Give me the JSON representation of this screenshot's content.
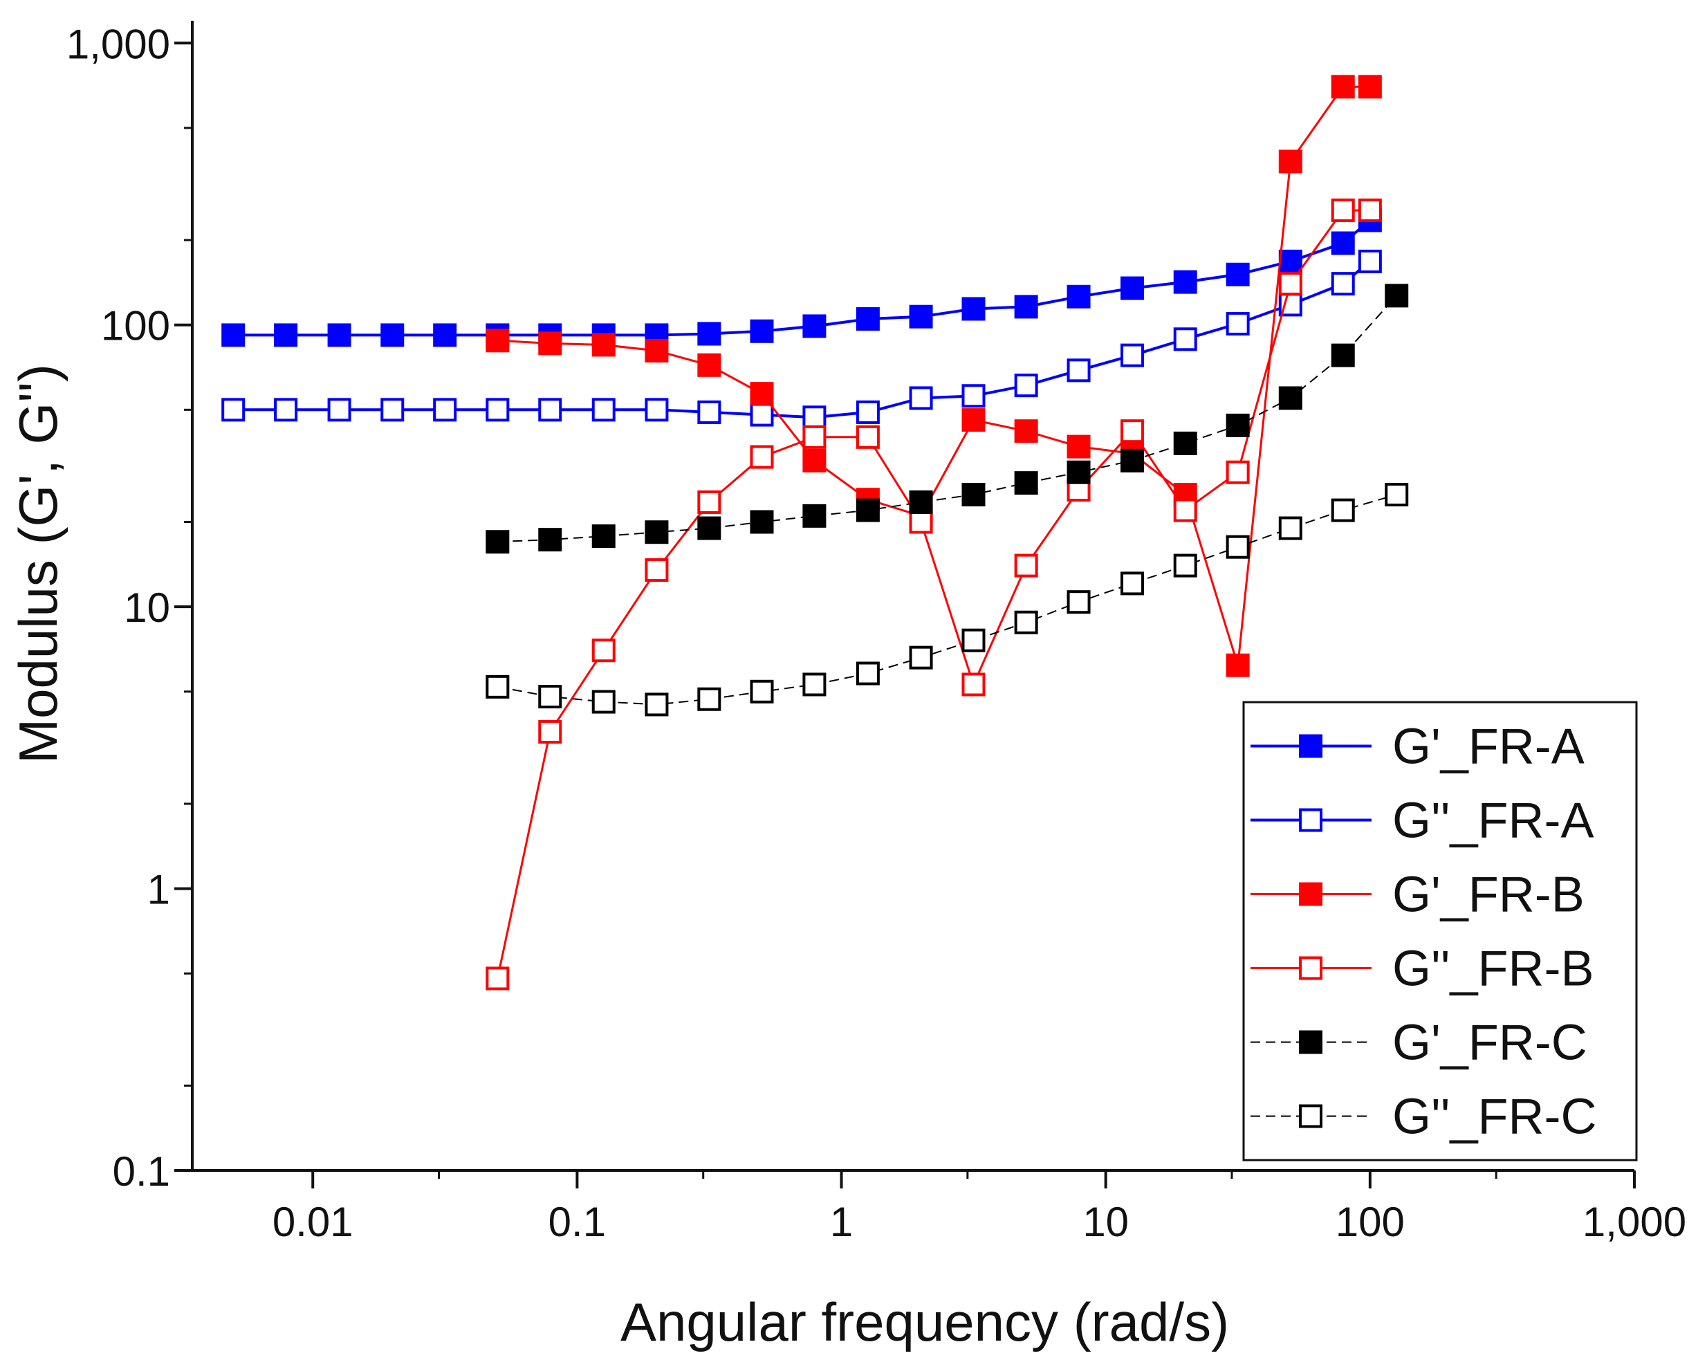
{
  "chart_data": {
    "type": "line",
    "title": "",
    "xlabel": "Angular frequency (rad/s)",
    "ylabel": "Modulus (G', G'')",
    "xscale": "log",
    "yscale": "log",
    "xlim": [
      0.0035,
      1000
    ],
    "ylim": [
      0.1,
      1200
    ],
    "x_ticks": [
      {
        "value": 0.01,
        "label": "0.01"
      },
      {
        "value": 0.1,
        "label": "0.1"
      },
      {
        "value": 1,
        "label": "1"
      },
      {
        "value": 10,
        "label": "10"
      },
      {
        "value": 100,
        "label": "100"
      },
      {
        "value": 1000,
        "label": "1,000"
      }
    ],
    "y_ticks": [
      {
        "value": 0.1,
        "label": "0.1"
      },
      {
        "value": 1,
        "label": "1"
      },
      {
        "value": 10,
        "label": "10"
      },
      {
        "value": 100,
        "label": "100"
      },
      {
        "value": 1000,
        "label": "1,000"
      }
    ],
    "grid": false,
    "legend_position": "bottom-right",
    "series": [
      {
        "name": "G'_FR-A",
        "color": "#0000ff",
        "filled": true,
        "line_width": 4,
        "dashed": false,
        "x": [
          0.005,
          0.0079,
          0.0126,
          0.02,
          0.0316,
          0.05,
          0.079,
          0.126,
          0.2,
          0.316,
          0.5,
          0.79,
          1.26,
          2,
          3.16,
          5,
          7.9,
          12.6,
          20,
          31.6,
          50,
          79,
          100
        ],
        "y": [
          92,
          92,
          92,
          92,
          92,
          92,
          92,
          92,
          92,
          93,
          95,
          99,
          105,
          107,
          114,
          116,
          126,
          135,
          142,
          151,
          168,
          195,
          235
        ]
      },
      {
        "name": "G''_FR-A",
        "color": "#0000ff",
        "filled": false,
        "line_width": 4,
        "dashed": false,
        "x": [
          0.005,
          0.0079,
          0.0126,
          0.02,
          0.0316,
          0.05,
          0.079,
          0.126,
          0.2,
          0.316,
          0.5,
          0.79,
          1.26,
          2,
          3.16,
          5,
          7.9,
          12.6,
          20,
          31.6,
          50,
          79,
          100
        ],
        "y": [
          50,
          50,
          50,
          50,
          50,
          50,
          50,
          50,
          50,
          49,
          48,
          47,
          49,
          55,
          56,
          61,
          69,
          78,
          89,
          101,
          118,
          140,
          168
        ]
      },
      {
        "name": "G'_FR-B",
        "color": "#ff0000",
        "filled": true,
        "line_width": 3,
        "dashed": false,
        "x": [
          0.05,
          0.079,
          0.126,
          0.2,
          0.316,
          0.5,
          0.79,
          1.26,
          2,
          3.16,
          5,
          7.9,
          12.6,
          20,
          31.6,
          50,
          79,
          100
        ],
        "y": [
          88,
          86,
          85,
          81,
          72,
          57,
          33,
          24,
          21,
          46,
          42,
          37,
          35,
          25,
          6.2,
          380,
          700,
          700
        ]
      },
      {
        "name": "G''_FR-B",
        "color": "#ff0000",
        "filled": false,
        "line_width": 3,
        "dashed": false,
        "x": [
          0.05,
          0.079,
          0.126,
          0.2,
          0.316,
          0.5,
          0.79,
          1.26,
          2,
          3.16,
          5,
          7.9,
          12.6,
          20,
          31.6,
          50,
          79,
          100
        ],
        "y": [
          0.48,
          3.6,
          7.0,
          13.5,
          23.5,
          34,
          40,
          40,
          20,
          5.3,
          14,
          26,
          42,
          22,
          30,
          140,
          255,
          255
        ]
      },
      {
        "name": "G'_FR-C",
        "color": "#000000",
        "filled": true,
        "line_width": 2,
        "dashed": true,
        "x": [
          0.05,
          0.079,
          0.126,
          0.2,
          0.316,
          0.5,
          0.79,
          1.26,
          2,
          3.16,
          5,
          7.9,
          12.6,
          20,
          31.6,
          50,
          79,
          126
        ],
        "y": [
          17,
          17.3,
          17.8,
          18.4,
          19,
          20,
          21,
          22,
          23.5,
          25,
          27.5,
          30,
          33,
          38,
          44,
          55,
          78,
          127
        ]
      },
      {
        "name": "G''_FR-C",
        "color": "#000000",
        "filled": false,
        "line_width": 2,
        "dashed": true,
        "x": [
          0.05,
          0.079,
          0.126,
          0.2,
          0.316,
          0.5,
          0.79,
          1.26,
          2,
          3.16,
          5,
          7.9,
          12.6,
          20,
          31.6,
          50,
          79,
          126
        ],
        "y": [
          5.2,
          4.8,
          4.6,
          4.5,
          4.7,
          5.0,
          5.3,
          5.8,
          6.6,
          7.6,
          8.8,
          10.4,
          12.1,
          14,
          16.3,
          19,
          22,
          25
        ]
      }
    ]
  }
}
